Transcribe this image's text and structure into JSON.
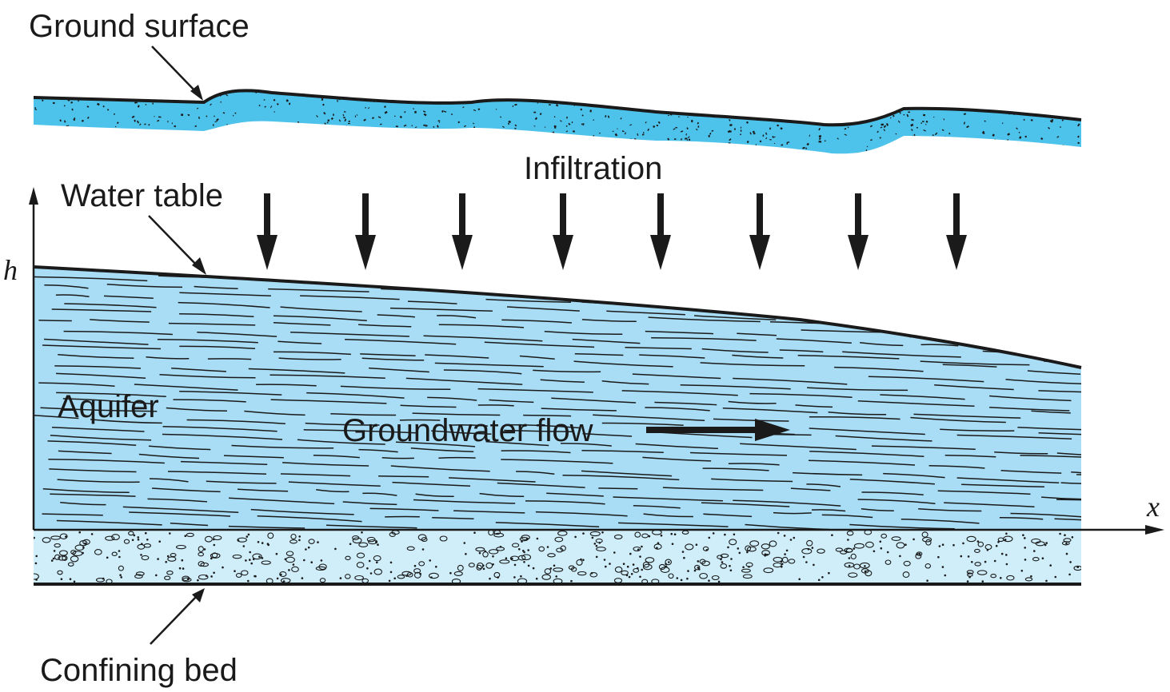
{
  "labels": {
    "ground_surface": "Ground surface",
    "infiltration": "Infiltration",
    "water_table": "Water table",
    "aquifer": "Aquifer",
    "groundwater_flow": "Groundwater flow",
    "confining_bed": "Confining bed",
    "axis_h": "h",
    "axis_x": "x"
  },
  "colors": {
    "water": "#a8ddf5",
    "ground": "#4dc3ec",
    "confining_bed": "#cfeefa",
    "line": "#1a1a1a"
  },
  "icons": [
    "arrow-down-icon",
    "arrow-right-icon"
  ]
}
